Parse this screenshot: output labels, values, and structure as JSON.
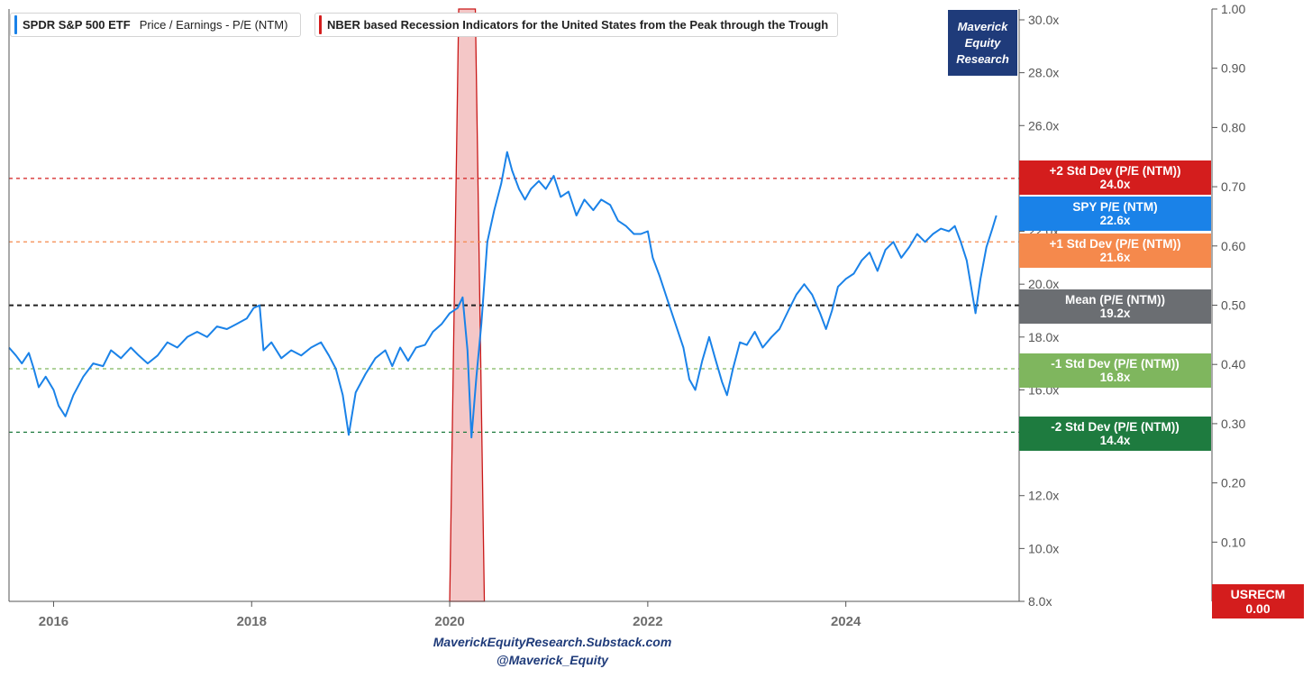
{
  "legend": {
    "series_symbol": "SPDR S&P 500 ETF",
    "series_desc": "Price / Earnings - P/E (NTM)",
    "series_color": "#1a82e8",
    "recession_desc": "NBER based Recession Indicators for the United States from the Peak through the Trough",
    "recession_color": "#d41d1d"
  },
  "brand": {
    "line1": "Maverick",
    "line2": "Equity",
    "line3": "Research"
  },
  "tags": [
    {
      "label": "+2 Std Dev (P/E (NTM))",
      "value": "24.0x",
      "color": "#d41d1d"
    },
    {
      "label": "SPY P/E (NTM)",
      "value": "22.6x",
      "color": "#1a82e8"
    },
    {
      "label": "+1 Std Dev (P/E (NTM))",
      "value": "21.6x",
      "color": "#f5894c"
    },
    {
      "label": "Mean (P/E (NTM))",
      "value": "19.2x",
      "color": "#6b6e72"
    },
    {
      "label": "-1 Std Dev (P/E (NTM))",
      "value": "16.8x",
      "color": "#7fb65e"
    },
    {
      "label": "-2 Std Dev (P/E (NTM))",
      "value": "14.4x",
      "color": "#1e7b3f"
    }
  ],
  "usrecm": {
    "label": "USRECM",
    "value": "0.00"
  },
  "footer": {
    "line1": "MaverickEquityResearch.Substack.com",
    "line2": "@Maverick_Equity"
  },
  "chart_data": {
    "type": "line",
    "x_ticks": [
      "2016",
      "2018",
      "2020",
      "2022",
      "2024"
    ],
    "y_left_ticks": [
      "8.0x",
      "10.0x",
      "12.0x",
      "14.0x",
      "16.0x",
      "18.0x",
      "20.0x",
      "22.0x",
      "24.0x",
      "26.0x",
      "28.0x",
      "30.0x"
    ],
    "y_left_range": [
      8,
      30
    ],
    "y_right_ticks": [
      "0.00",
      "0.10",
      "0.20",
      "0.30",
      "0.40",
      "0.50",
      "0.60",
      "0.70",
      "0.80",
      "0.90",
      "1.00"
    ],
    "y_right_range": [
      0,
      1
    ],
    "x_range": [
      2015.55,
      2025.75
    ],
    "grid": false,
    "reference_lines": [
      {
        "value": 24.0,
        "color": "#d41d1d"
      },
      {
        "value": 21.6,
        "color": "#f5894c"
      },
      {
        "value": 19.2,
        "color": "#222222"
      },
      {
        "value": 16.8,
        "color": "#7fb65e"
      },
      {
        "value": 14.4,
        "color": "#1e7b3f"
      }
    ],
    "recession_band": {
      "start": 2020.0,
      "end": 2020.35,
      "value": 1.0
    },
    "series": [
      {
        "values": [
          [
            2015.55,
            17.6
          ],
          [
            2015.62,
            17.3
          ],
          [
            2015.68,
            17.0
          ],
          [
            2015.75,
            17.4
          ],
          [
            2015.8,
            16.8
          ],
          [
            2015.85,
            16.1
          ],
          [
            2015.92,
            16.5
          ],
          [
            2016.0,
            16.0
          ],
          [
            2016.05,
            15.4
          ],
          [
            2016.12,
            15.0
          ],
          [
            2016.2,
            15.8
          ],
          [
            2016.3,
            16.5
          ],
          [
            2016.4,
            17.0
          ],
          [
            2016.5,
            16.9
          ],
          [
            2016.58,
            17.5
          ],
          [
            2016.68,
            17.2
          ],
          [
            2016.78,
            17.6
          ],
          [
            2016.86,
            17.3
          ],
          [
            2016.95,
            17.0
          ],
          [
            2017.05,
            17.3
          ],
          [
            2017.15,
            17.8
          ],
          [
            2017.25,
            17.6
          ],
          [
            2017.35,
            18.0
          ],
          [
            2017.45,
            18.2
          ],
          [
            2017.55,
            18.0
          ],
          [
            2017.65,
            18.4
          ],
          [
            2017.75,
            18.3
          ],
          [
            2017.85,
            18.5
          ],
          [
            2017.95,
            18.7
          ],
          [
            2018.02,
            19.1
          ],
          [
            2018.08,
            19.2
          ],
          [
            2018.12,
            17.5
          ],
          [
            2018.2,
            17.8
          ],
          [
            2018.3,
            17.2
          ],
          [
            2018.4,
            17.5
          ],
          [
            2018.5,
            17.3
          ],
          [
            2018.6,
            17.6
          ],
          [
            2018.7,
            17.8
          ],
          [
            2018.78,
            17.3
          ],
          [
            2018.85,
            16.8
          ],
          [
            2018.92,
            15.8
          ],
          [
            2018.98,
            14.3
          ],
          [
            2019.05,
            15.9
          ],
          [
            2019.15,
            16.6
          ],
          [
            2019.25,
            17.2
          ],
          [
            2019.35,
            17.5
          ],
          [
            2019.42,
            16.9
          ],
          [
            2019.5,
            17.6
          ],
          [
            2019.58,
            17.1
          ],
          [
            2019.66,
            17.6
          ],
          [
            2019.75,
            17.7
          ],
          [
            2019.83,
            18.2
          ],
          [
            2019.92,
            18.5
          ],
          [
            2020.0,
            18.9
          ],
          [
            2020.08,
            19.1
          ],
          [
            2020.13,
            19.5
          ],
          [
            2020.18,
            17.5
          ],
          [
            2020.22,
            14.2
          ],
          [
            2020.27,
            16.5
          ],
          [
            2020.32,
            18.5
          ],
          [
            2020.38,
            21.6
          ],
          [
            2020.45,
            22.8
          ],
          [
            2020.52,
            23.8
          ],
          [
            2020.58,
            25.0
          ],
          [
            2020.63,
            24.3
          ],
          [
            2020.7,
            23.6
          ],
          [
            2020.76,
            23.2
          ],
          [
            2020.82,
            23.6
          ],
          [
            2020.9,
            23.9
          ],
          [
            2020.97,
            23.6
          ],
          [
            2021.05,
            24.1
          ],
          [
            2021.12,
            23.3
          ],
          [
            2021.2,
            23.5
          ],
          [
            2021.28,
            22.6
          ],
          [
            2021.36,
            23.2
          ],
          [
            2021.45,
            22.8
          ],
          [
            2021.53,
            23.2
          ],
          [
            2021.62,
            23.0
          ],
          [
            2021.7,
            22.4
          ],
          [
            2021.78,
            22.2
          ],
          [
            2021.86,
            21.9
          ],
          [
            2021.93,
            21.9
          ],
          [
            2022.0,
            22.0
          ],
          [
            2022.05,
            21.0
          ],
          [
            2022.12,
            20.3
          ],
          [
            2022.2,
            19.4
          ],
          [
            2022.28,
            18.5
          ],
          [
            2022.36,
            17.6
          ],
          [
            2022.42,
            16.4
          ],
          [
            2022.48,
            16.0
          ],
          [
            2022.55,
            17.1
          ],
          [
            2022.62,
            18.0
          ],
          [
            2022.68,
            17.2
          ],
          [
            2022.75,
            16.3
          ],
          [
            2022.8,
            15.8
          ],
          [
            2022.86,
            16.8
          ],
          [
            2022.93,
            17.8
          ],
          [
            2023.0,
            17.7
          ],
          [
            2023.08,
            18.2
          ],
          [
            2023.16,
            17.6
          ],
          [
            2023.25,
            18.0
          ],
          [
            2023.33,
            18.3
          ],
          [
            2023.42,
            19.0
          ],
          [
            2023.5,
            19.6
          ],
          [
            2023.58,
            20.0
          ],
          [
            2023.66,
            19.6
          ],
          [
            2023.74,
            18.9
          ],
          [
            2023.8,
            18.3
          ],
          [
            2023.86,
            19.0
          ],
          [
            2023.92,
            19.9
          ],
          [
            2024.0,
            20.2
          ],
          [
            2024.08,
            20.4
          ],
          [
            2024.16,
            20.9
          ],
          [
            2024.24,
            21.2
          ],
          [
            2024.32,
            20.5
          ],
          [
            2024.4,
            21.3
          ],
          [
            2024.48,
            21.6
          ],
          [
            2024.56,
            21.0
          ],
          [
            2024.64,
            21.4
          ],
          [
            2024.72,
            21.9
          ],
          [
            2024.8,
            21.6
          ],
          [
            2024.88,
            21.9
          ],
          [
            2024.96,
            22.1
          ],
          [
            2025.04,
            22.0
          ],
          [
            2025.1,
            22.2
          ],
          [
            2025.16,
            21.6
          ],
          [
            2025.22,
            20.9
          ],
          [
            2025.27,
            19.8
          ],
          [
            2025.31,
            18.9
          ],
          [
            2025.36,
            20.2
          ],
          [
            2025.42,
            21.4
          ],
          [
            2025.48,
            22.1
          ],
          [
            2025.52,
            22.6
          ]
        ]
      }
    ]
  }
}
